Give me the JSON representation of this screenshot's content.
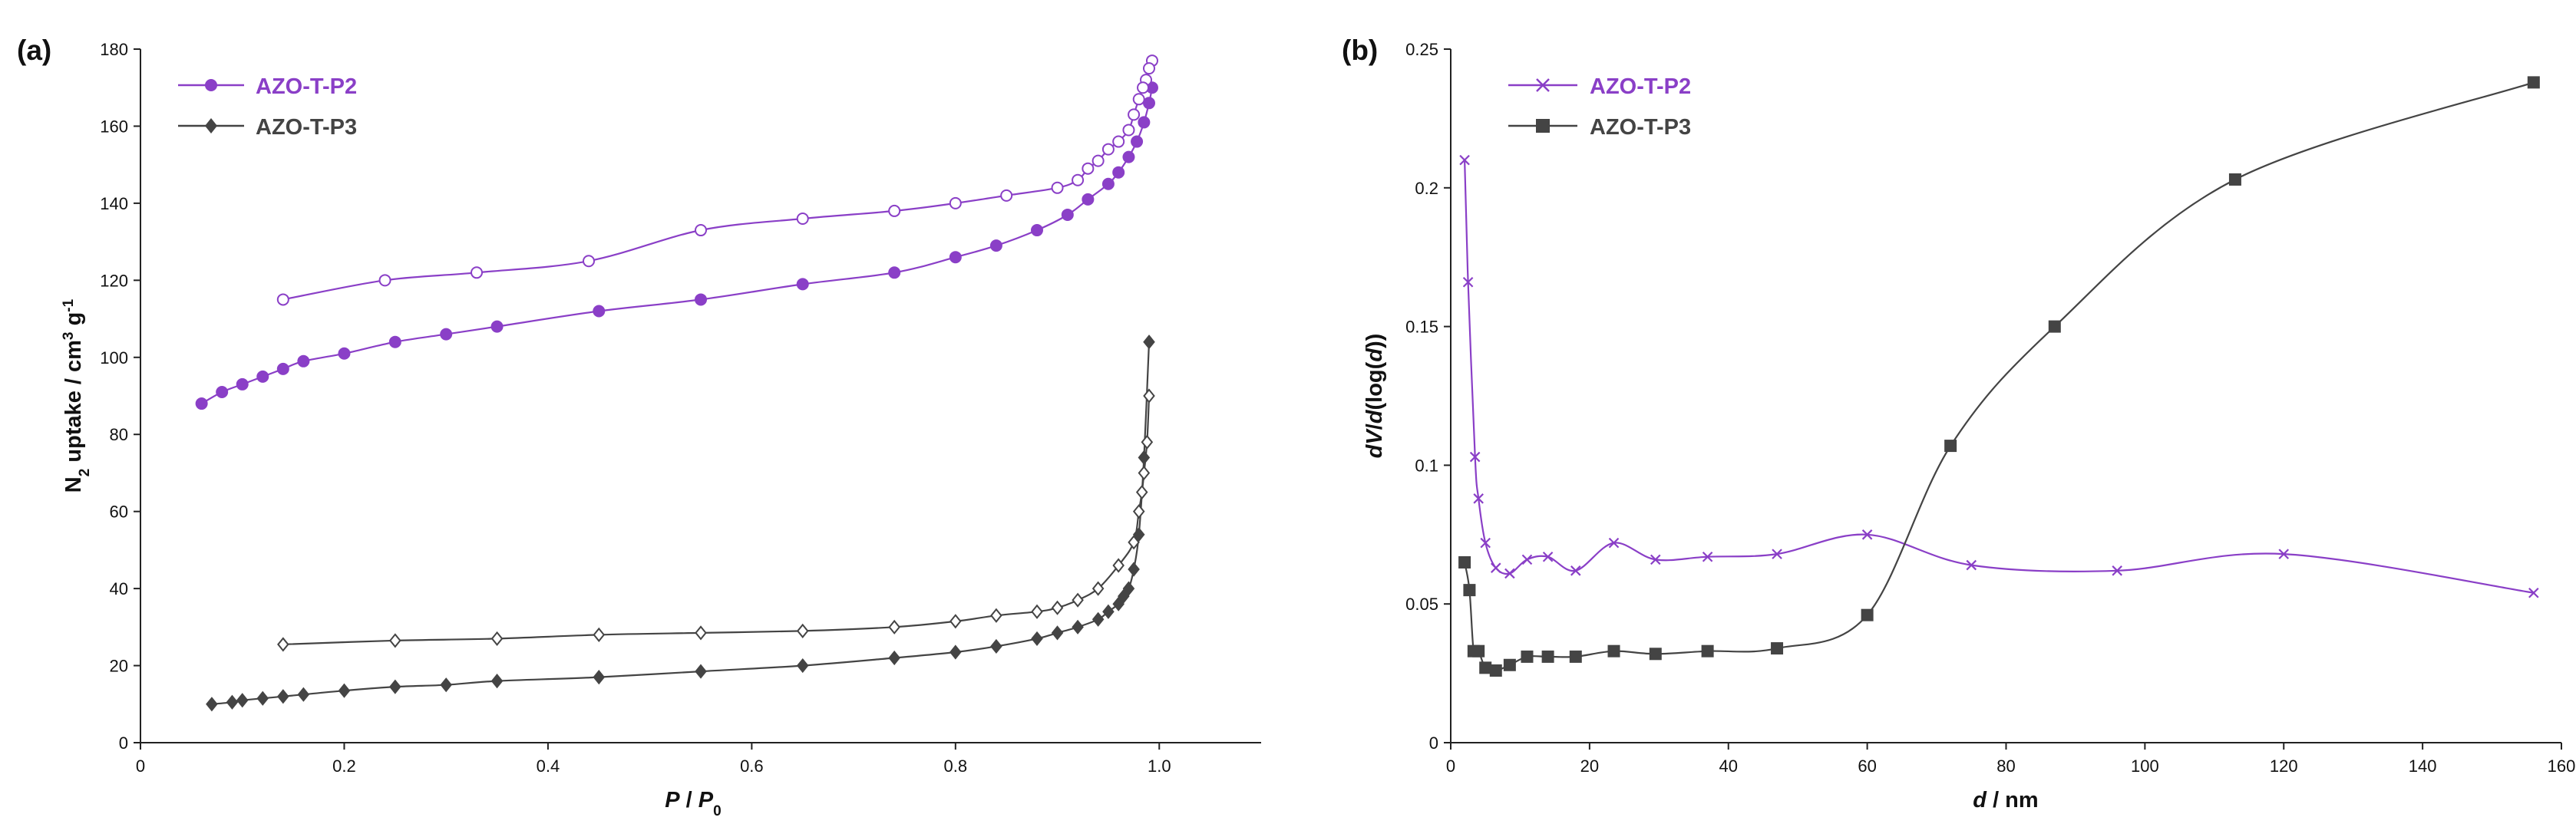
{
  "chart_data": [
    {
      "type": "line",
      "panel_label": "(a)",
      "xlabel": {
        "main": "P",
        "sep": " / ",
        "sub_base": "P",
        "sub": "0"
      },
      "ylabel": {
        "pre": "N",
        "sub": "2",
        "mid": " uptake / cm",
        "sup1": "3",
        "mid2": " g",
        "sup2": "-1"
      },
      "xlim": [
        0,
        1.1
      ],
      "ylim": [
        0,
        180
      ],
      "xticks": [
        "0",
        "0.2",
        "0.4",
        "0.6",
        "0.8",
        "1.0"
      ],
      "yticks": [
        "0",
        "20",
        "40",
        "60",
        "80",
        "100",
        "120",
        "140",
        "160",
        "180"
      ],
      "legend_position": "top-left",
      "series": [
        {
          "name": "AZO-T-P2",
          "kind": "adsorption",
          "color": "#8a3fc7",
          "marker": "circle",
          "filled": true,
          "x": [
            0.06,
            0.08,
            0.1,
            0.12,
            0.14,
            0.16,
            0.2,
            0.25,
            0.3,
            0.35,
            0.45,
            0.55,
            0.65,
            0.74,
            0.8,
            0.84,
            0.88,
            0.91,
            0.93,
            0.95,
            0.96,
            0.97,
            0.978,
            0.985,
            0.99,
            0.993
          ],
          "y": [
            88,
            91,
            93,
            95,
            97,
            99,
            101,
            104,
            106,
            108,
            112,
            115,
            119,
            122,
            126,
            129,
            133,
            137,
            141,
            145,
            148,
            152,
            156,
            161,
            166,
            170
          ]
        },
        {
          "name": "AZO-T-P2",
          "kind": "desorption",
          "color": "#8a3fc7",
          "marker": "circle",
          "filled": false,
          "x": [
            0.993,
            0.99,
            0.987,
            0.984,
            0.98,
            0.975,
            0.97,
            0.96,
            0.95,
            0.94,
            0.93,
            0.92,
            0.9,
            0.85,
            0.8,
            0.74,
            0.65,
            0.55,
            0.44,
            0.33,
            0.24,
            0.14
          ],
          "y": [
            177,
            175,
            172,
            170,
            167,
            163,
            159,
            156,
            154,
            151,
            149,
            146,
            144,
            142,
            140,
            138,
            136,
            133,
            125,
            122,
            120,
            115
          ]
        },
        {
          "name": "AZO-T-P3",
          "kind": "adsorption",
          "color": "#444444",
          "marker": "diamond",
          "filled": true,
          "x": [
            0.07,
            0.09,
            0.1,
            0.12,
            0.14,
            0.16,
            0.2,
            0.25,
            0.3,
            0.35,
            0.45,
            0.55,
            0.65,
            0.74,
            0.8,
            0.84,
            0.88,
            0.9,
            0.92,
            0.94,
            0.95,
            0.96,
            0.965,
            0.97,
            0.975,
            0.98,
            0.985,
            0.99
          ],
          "y": [
            10,
            10.5,
            11,
            11.5,
            12,
            12.5,
            13.5,
            14.5,
            15,
            16,
            17,
            18.5,
            20,
            22,
            23.5,
            25,
            27,
            28.5,
            30,
            32,
            34,
            36,
            38,
            40,
            45,
            54,
            74,
            104
          ]
        },
        {
          "name": "AZO-T-P3",
          "kind": "desorption",
          "color": "#444444",
          "marker": "diamond",
          "filled": false,
          "x": [
            0.99,
            0.988,
            0.985,
            0.983,
            0.98,
            0.975,
            0.96,
            0.94,
            0.92,
            0.9,
            0.88,
            0.84,
            0.8,
            0.74,
            0.65,
            0.55,
            0.45,
            0.35,
            0.25,
            0.14
          ],
          "y": [
            90,
            78,
            70,
            65,
            60,
            52,
            46,
            40,
            37,
            35,
            34,
            33,
            31.5,
            30,
            29,
            28.5,
            28,
            27,
            26.5,
            25.5
          ]
        }
      ]
    },
    {
      "type": "line",
      "panel_label": "(b)",
      "xlabel": {
        "main": "d",
        "rest": " / nm"
      },
      "ylabel": {
        "p1": "dV",
        "p2": "/",
        "p3": "d",
        "p4": "(log(",
        "p5": "d",
        "p6": "))"
      },
      "xlim": [
        0,
        160
      ],
      "ylim": [
        0,
        0.25
      ],
      "xticks": [
        "0",
        "20",
        "40",
        "60",
        "80",
        "100",
        "120",
        "140",
        "160"
      ],
      "yticks": [
        "0",
        "0.05",
        "0.1",
        "0.15",
        "0.2",
        "0.25"
      ],
      "legend_position": "top-left",
      "series": [
        {
          "name": "AZO-T-P2",
          "color": "#8a3fc7",
          "marker": "x",
          "x": [
            2.0,
            2.5,
            3.5,
            4.0,
            5.0,
            6.5,
            8.5,
            11,
            14,
            18,
            23.5,
            29.5,
            37,
            47,
            60,
            75,
            96,
            120,
            156
          ],
          "y": [
            0.21,
            0.166,
            0.103,
            0.088,
            0.072,
            0.063,
            0.061,
            0.066,
            0.067,
            0.062,
            0.072,
            0.066,
            0.067,
            0.068,
            0.075,
            0.064,
            0.062,
            0.068,
            0.054
          ]
        },
        {
          "name": "AZO-T-P3",
          "color": "#444444",
          "marker": "square",
          "x": [
            2.0,
            2.7,
            3.3,
            4.0,
            5.0,
            6.5,
            8.5,
            11,
            14,
            18,
            23.5,
            29.5,
            37,
            47,
            60,
            72,
            87,
            113,
            156
          ],
          "y": [
            0.065,
            0.055,
            0.033,
            0.033,
            0.027,
            0.026,
            0.028,
            0.031,
            0.031,
            0.031,
            0.033,
            0.032,
            0.033,
            0.034,
            0.046,
            0.107,
            0.15,
            0.203,
            0.238
          ]
        }
      ]
    }
  ]
}
